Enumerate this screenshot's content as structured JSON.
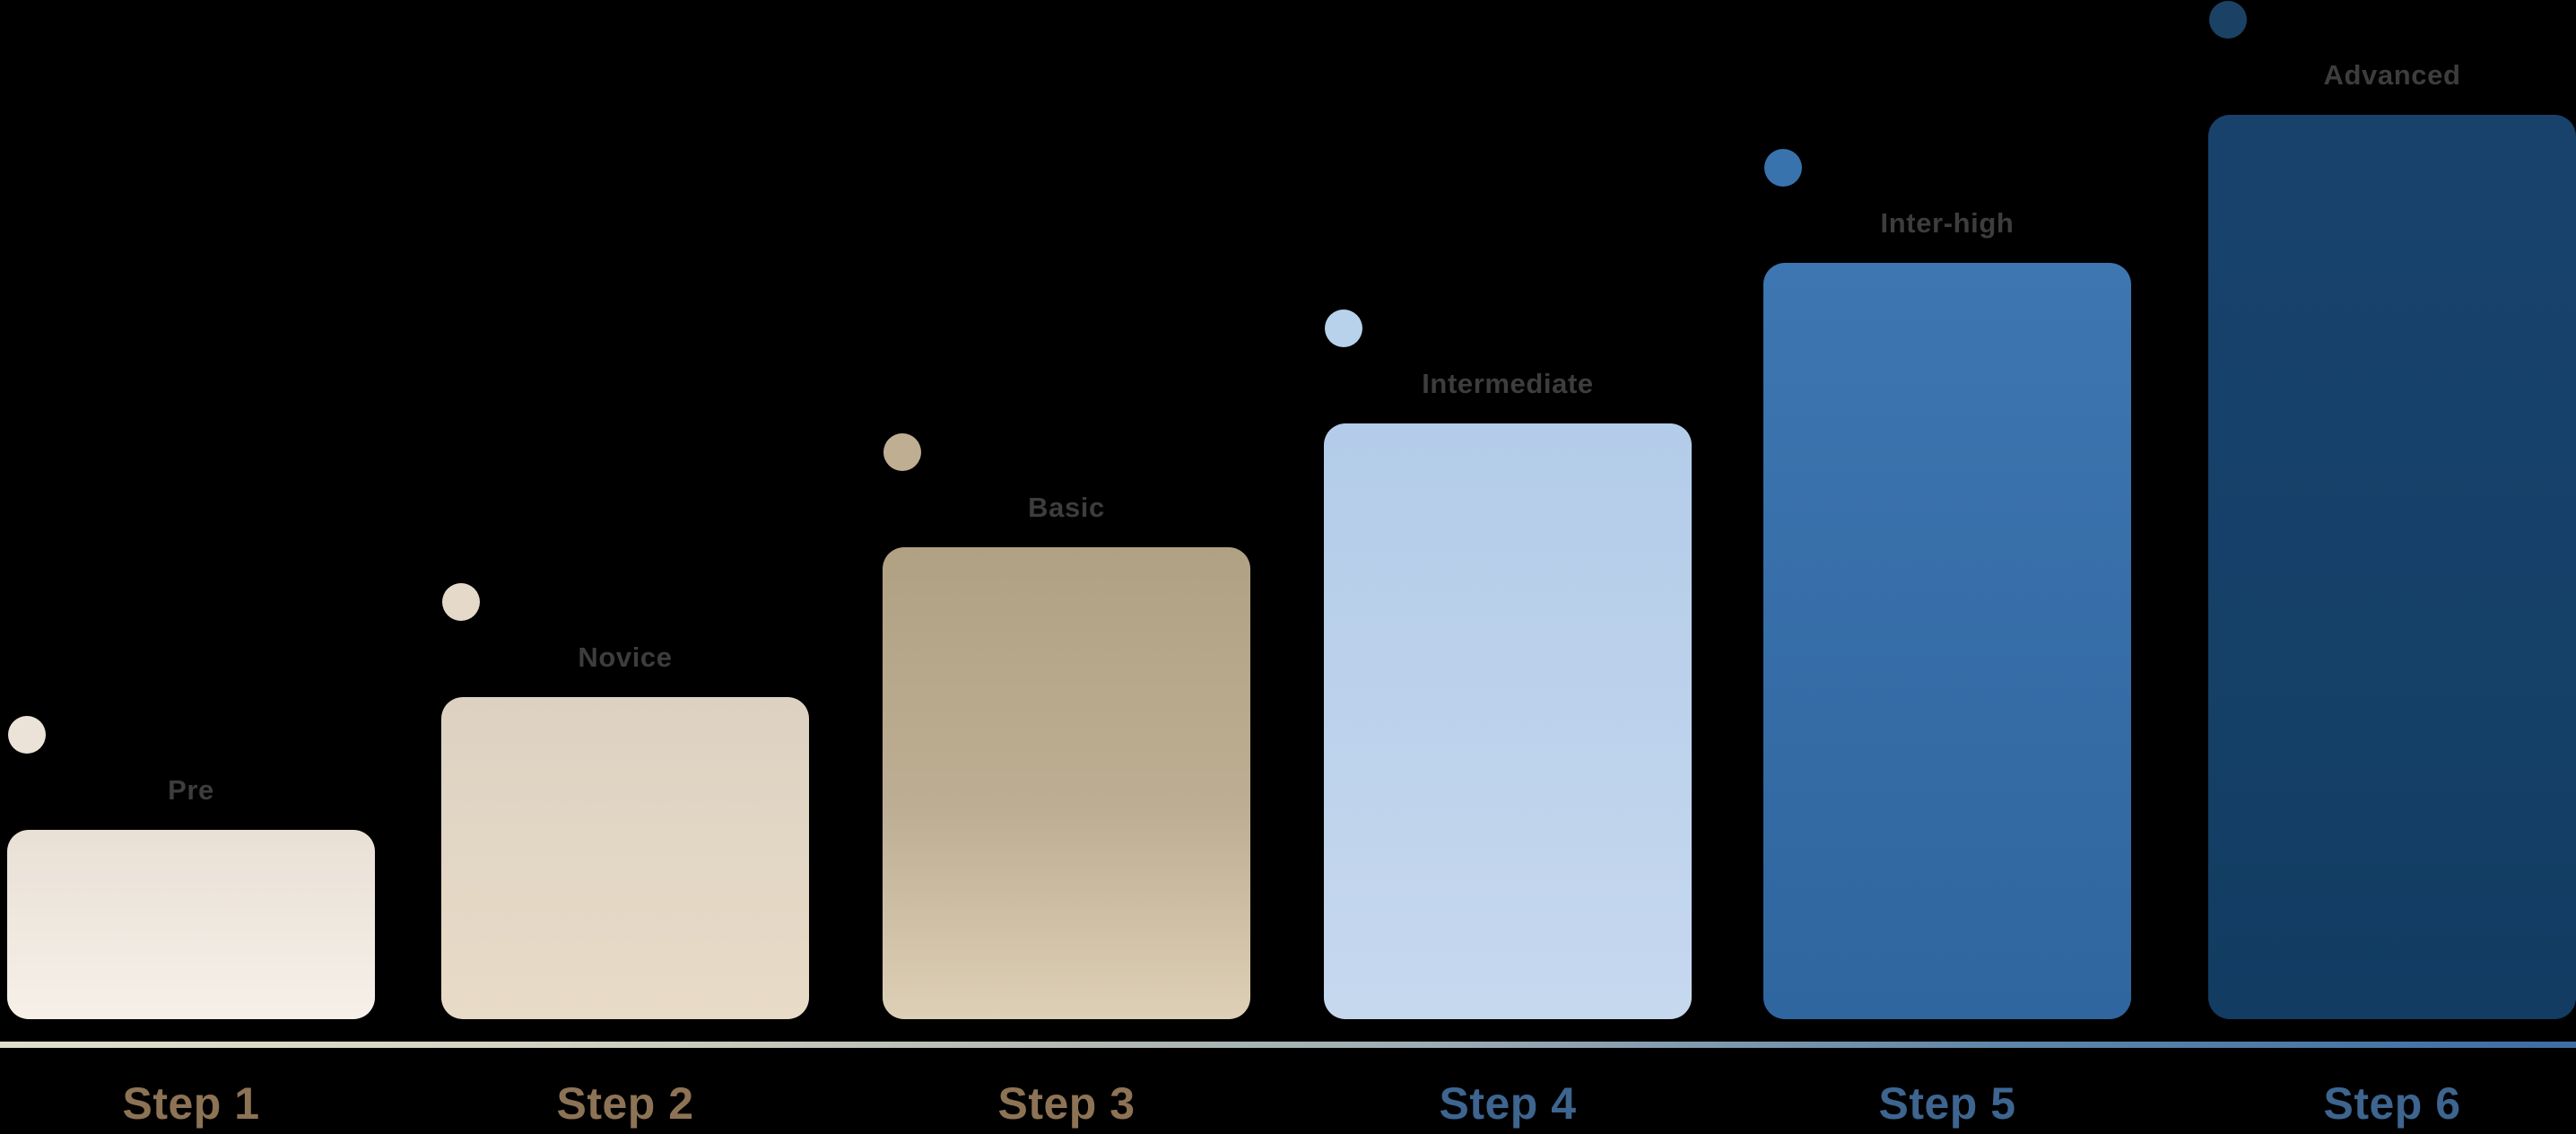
{
  "chart_data": {
    "type": "bar",
    "title": "",
    "xlabel": "",
    "ylabel": "",
    "categories": [
      "Step 1",
      "Step 2",
      "Step 3",
      "Step 4",
      "Step 5",
      "Step 6"
    ],
    "series": [
      {
        "name": "level-progression-bar-height-px",
        "values": [
          211,
          359,
          526,
          664,
          843,
          1008
        ]
      }
    ],
    "values_normalized": [
      0.21,
      0.36,
      0.52,
      0.66,
      0.84,
      1.0
    ],
    "bar_labels": [
      "Pre",
      "Novice",
      "Basic",
      "Intermediate",
      "Inter-high",
      "Advanced"
    ],
    "legend": "none",
    "grid": false,
    "layout": "staircase left-to-right ascending, dot marker above top-left corner of each bar"
  },
  "background_color": "#000000",
  "level_label_color": "#3d3d3d",
  "baseline": {
    "gradient_colors": [
      "#e1ddce",
      "#b5bcb3",
      "#9fadb4",
      "#5e86a8",
      "#3e6da5"
    ]
  },
  "steps": [
    {
      "step": "Step 1",
      "level": "Pre",
      "bar_color_top": "#e9e0d5",
      "bar_color_bottom": "#f6f0e9",
      "dot_color": "#ece3d8",
      "step_label_color": "#8d7355"
    },
    {
      "step": "Step 2",
      "level": "Novice",
      "bar_color_top": "#ddd2c2",
      "bar_color_bottom": "#e8dbc7",
      "dot_color": "#e5dac9",
      "step_label_color": "#8d7355"
    },
    {
      "step": "Step 3",
      "level": "Basic",
      "bar_color_top": "#b1a183",
      "bar_color_bottom": "#ded0b6",
      "dot_color": "#bfae92",
      "step_label_color": "#8d7355"
    },
    {
      "step": "Step 4",
      "level": "Intermediate",
      "bar_color_top": "#b3cce9",
      "bar_color_bottom": "#c6d8ee",
      "dot_color": "#b9d2ec",
      "step_label_color": "#3d6590"
    },
    {
      "step": "Step 5",
      "level": "Inter-high",
      "bar_color_top": "#3d76b1",
      "bar_color_bottom": "#30669f",
      "dot_color": "#3973ad",
      "step_label_color": "#3d6590"
    },
    {
      "step": "Step 6",
      "level": "Advanced",
      "bar_color_top": "#18426c",
      "bar_color_bottom": "#123c62",
      "dot_color": "#1b4264",
      "step_label_color": "#3d6590"
    }
  ]
}
